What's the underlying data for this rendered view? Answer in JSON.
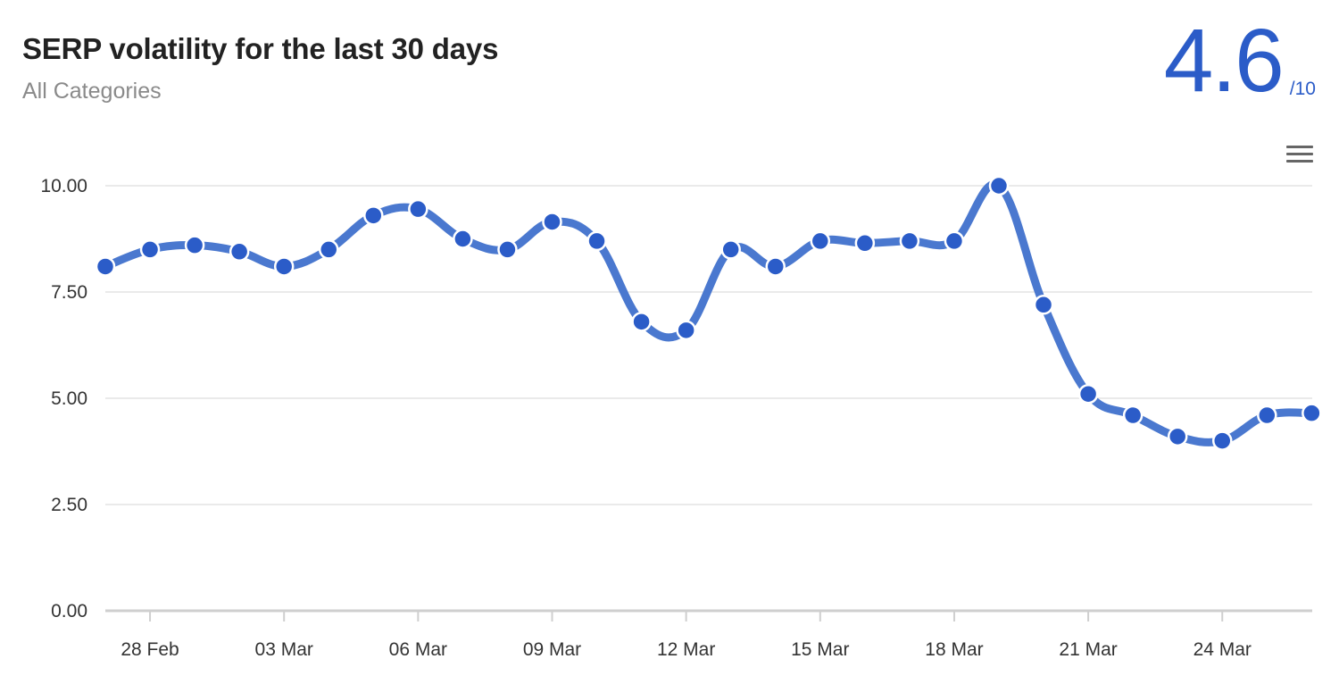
{
  "header": {
    "title": "SERP volatility for the last 30 days",
    "subtitle": "All Categories",
    "score": "4.6",
    "score_max": "/10"
  },
  "menu": {
    "icon": "hamburger-menu-icon"
  },
  "colors": {
    "line": "#4a78cf",
    "marker": "#2b5cc8",
    "score": "#2b5cc8",
    "grid": "#e3e3e3"
  },
  "chart_data": {
    "type": "line",
    "title": "SERP volatility for the last 30 days",
    "subtitle": "All Categories",
    "xlabel": "",
    "ylabel": "",
    "ylim": [
      0,
      10
    ],
    "y_ticks": [
      "0.00",
      "2.50",
      "5.00",
      "7.50",
      "10.00"
    ],
    "x_ticks": [
      "28 Feb",
      "03 Mar",
      "06 Mar",
      "09 Mar",
      "12 Mar",
      "15 Mar",
      "18 Mar",
      "21 Mar",
      "24 Mar"
    ],
    "grid": true,
    "legend": "none",
    "x": [
      "27 Feb",
      "28 Feb",
      "01 Mar",
      "02 Mar",
      "03 Mar",
      "04 Mar",
      "05 Mar",
      "06 Mar",
      "07 Mar",
      "08 Mar",
      "09 Mar",
      "10 Mar",
      "11 Mar",
      "12 Mar",
      "13 Mar",
      "14 Mar",
      "15 Mar",
      "16 Mar",
      "17 Mar",
      "18 Mar",
      "19 Mar",
      "20 Mar",
      "21 Mar",
      "22 Mar",
      "23 Mar",
      "24 Mar",
      "25 Mar",
      "26 Mar"
    ],
    "values": [
      8.1,
      8.5,
      8.6,
      8.45,
      8.1,
      8.5,
      9.3,
      9.45,
      8.75,
      8.5,
      9.15,
      8.7,
      6.8,
      6.6,
      8.5,
      8.1,
      8.7,
      8.65,
      8.7,
      8.7,
      10.0,
      7.2,
      5.1,
      4.6,
      4.1,
      4.0,
      4.6,
      4.65
    ]
  }
}
